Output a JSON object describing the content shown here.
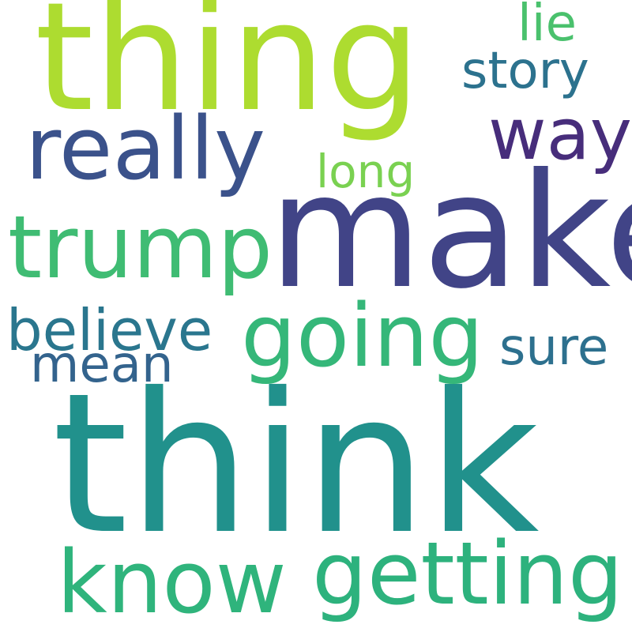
{
  "words": [
    {
      "id": "think",
      "text": "think",
      "color": "#21918c"
    },
    {
      "id": "make",
      "text": "make",
      "color": "#414487"
    },
    {
      "id": "thing",
      "text": "thing",
      "color": "#addc30"
    },
    {
      "id": "really",
      "text": "really",
      "color": "#3b528b"
    },
    {
      "id": "trump",
      "text": "trump",
      "color": "#3fbc73"
    },
    {
      "id": "going",
      "text": "going",
      "color": "#35b779"
    },
    {
      "id": "know",
      "text": "know",
      "color": "#2fb47c"
    },
    {
      "id": "getting",
      "text": "getting",
      "color": "#2db27d"
    },
    {
      "id": "way",
      "text": "way",
      "color": "#472d7b"
    },
    {
      "id": "believe",
      "text": "believe",
      "color": "#2a768e"
    },
    {
      "id": "mean",
      "text": "mean",
      "color": "#33638d"
    },
    {
      "id": "sure",
      "text": "sure",
      "color": "#2d708e"
    },
    {
      "id": "story",
      "text": "story",
      "color": "#2c728e"
    },
    {
      "id": "long",
      "text": "long",
      "color": "#7ad151"
    },
    {
      "id": "lie",
      "text": "lie",
      "color": "#4ac16d"
    }
  ]
}
